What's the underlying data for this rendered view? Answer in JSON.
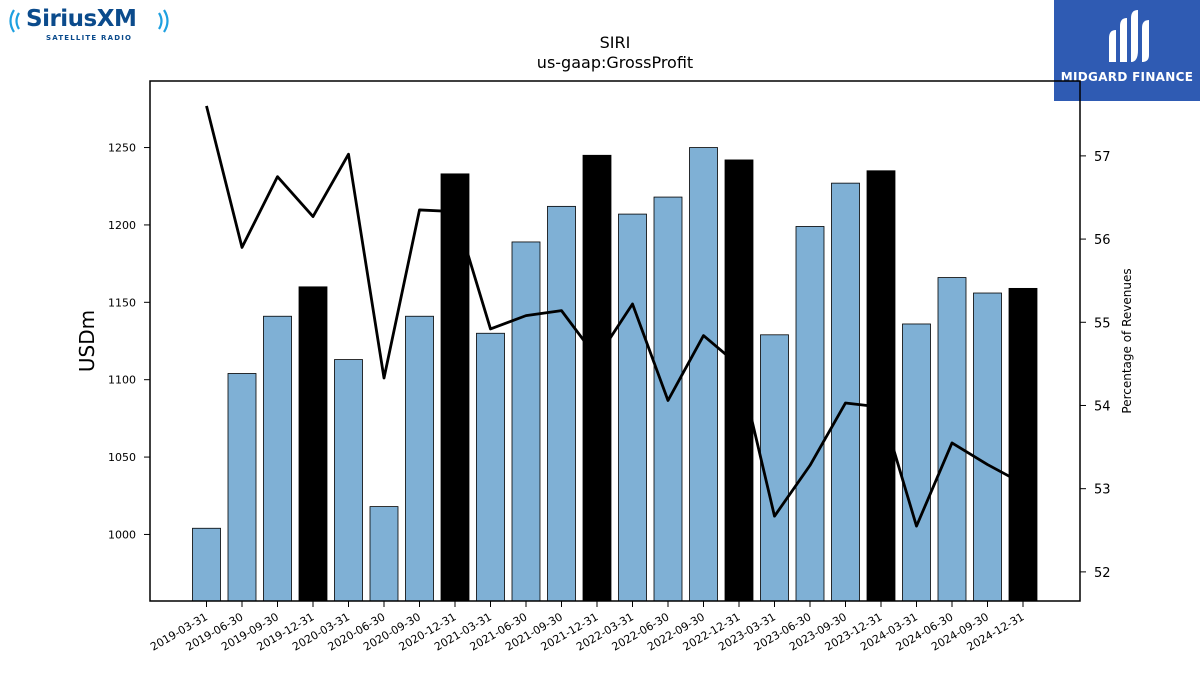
{
  "logos": {
    "left": {
      "brand": "SiriusXM",
      "tagline": "SATELLITE RADIO",
      "icon": "radio-waves-icon"
    },
    "right": {
      "brand": "MIDGARD FINANCE",
      "icon": "midgard-mark-icon",
      "color": "#2f5bb3"
    }
  },
  "chart_data": {
    "type": "bar",
    "title": "SIRI",
    "subtitle": "us-gaap:GrossProfit",
    "ylabel": "USDm",
    "y2label": "Percentage of Revenues",
    "ylim": [
      957,
      1293
    ],
    "y2lim": [
      51.65,
      57.9
    ],
    "yticks": [
      1000,
      1050,
      1100,
      1150,
      1200,
      1250
    ],
    "y2ticks": [
      52,
      53,
      54,
      55,
      56,
      57
    ],
    "grid": false,
    "categories": [
      "2019-03-31",
      "2019-06-30",
      "2019-09-30",
      "2019-12-31",
      "2020-03-31",
      "2020-06-30",
      "2020-09-30",
      "2020-12-31",
      "2021-03-31",
      "2021-06-30",
      "2021-09-30",
      "2021-12-31",
      "2022-03-31",
      "2022-06-30",
      "2022-09-30",
      "2022-12-31",
      "2023-03-31",
      "2023-06-30",
      "2023-09-30",
      "2023-12-31",
      "2024-03-31",
      "2024-06-30",
      "2024-09-30",
      "2024-12-31"
    ],
    "series": [
      {
        "kind": "bar",
        "values": [
          1004,
          1104,
          1141,
          1160,
          1113,
          1018,
          1141,
          1233,
          1130,
          1189,
          1212,
          1245,
          1207,
          1218,
          1250,
          1242,
          1129,
          1199,
          1227,
          1235,
          1136,
          1166,
          1156,
          1159
        ],
        "colors": {
          "quarter": "#7fb0d5",
          "year_end": "#000000"
        }
      },
      {
        "kind": "line",
        "axis": "right",
        "values": [
          57.6,
          55.9,
          56.75,
          56.27,
          57.02,
          54.33,
          56.35,
          56.33,
          54.92,
          55.08,
          55.14,
          54.57,
          55.22,
          54.06,
          54.84,
          54.48,
          52.67,
          53.28,
          54.03,
          53.98,
          52.55,
          53.55,
          53.29,
          53.06
        ],
        "color": "#000000"
      }
    ]
  }
}
